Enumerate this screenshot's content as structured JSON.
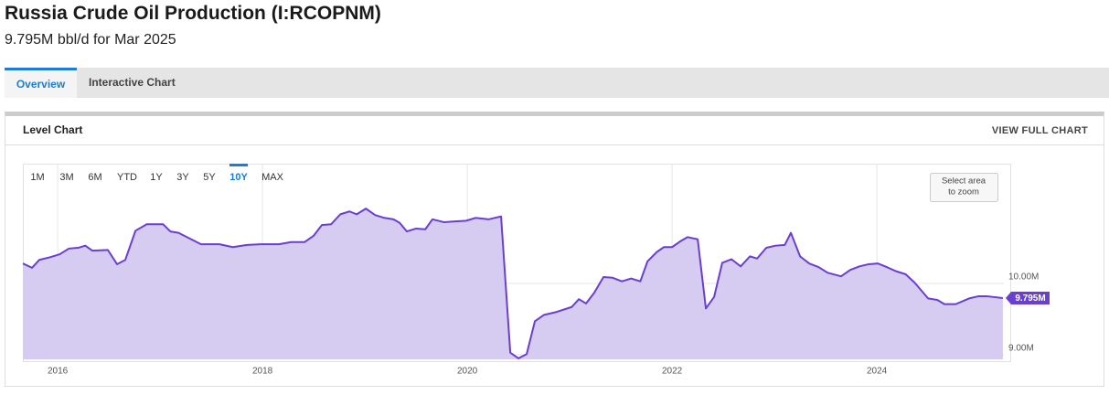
{
  "header": {
    "title": "Russia Crude Oil Production (I:RCOPNM)",
    "subtitle": "9.795M bbl/d for Mar 2025"
  },
  "tabs": [
    "Overview",
    "Interactive Chart"
  ],
  "panel": {
    "title": "Level Chart",
    "action": "VIEW FULL CHART"
  },
  "range_buttons": [
    "1M",
    "3M",
    "6M",
    "YTD",
    "1Y",
    "3Y",
    "5Y",
    "10Y",
    "MAX"
  ],
  "active_range": "10Y",
  "zoom_hint": [
    "Select area",
    "to zoom"
  ],
  "chart_data": {
    "type": "line",
    "color": "#6a3fd0",
    "fill_color": "#d6cbf1",
    "grid": true,
    "xlim": [
      2015.66,
      2025.24
    ],
    "xticks": [
      2016,
      2018,
      2020,
      2022,
      2024
    ],
    "ylim": [
      8.936,
      11.68
    ],
    "yticks": [
      {
        "value": 9,
        "label": "9.00M"
      },
      {
        "value": 10,
        "label": "10.00M"
      }
    ],
    "x": [
      2015.66,
      2015.75,
      2015.82,
      2015.93,
      2016.02,
      2016.11,
      2016.2,
      2016.27,
      2016.34,
      2016.49,
      2016.58,
      2016.66,
      2016.76,
      2016.87,
      2017.03,
      2017.1,
      2017.18,
      2017.4,
      2017.58,
      2017.71,
      2017.85,
      2017.98,
      2018.16,
      2018.28,
      2018.41,
      2018.5,
      2018.58,
      2018.67,
      2018.76,
      2018.85,
      2018.92,
      2019.01,
      2019.1,
      2019.19,
      2019.28,
      2019.34,
      2019.41,
      2019.5,
      2019.59,
      2019.66,
      2019.77,
      2019.88,
      2019.99,
      2020.08,
      2020.21,
      2020.33,
      2020.42,
      2020.5,
      2020.58,
      2020.66,
      2020.75,
      2020.87,
      2021.02,
      2021.09,
      2021.16,
      2021.24,
      2021.33,
      2021.42,
      2021.51,
      2021.6,
      2021.69,
      2021.76,
      2021.85,
      2021.92,
      2022.0,
      2022.09,
      2022.15,
      2022.25,
      2022.33,
      2022.41,
      2022.49,
      2022.58,
      2022.67,
      2022.76,
      2022.83,
      2022.92,
      2023.01,
      2023.1,
      2023.16,
      2023.25,
      2023.34,
      2023.43,
      2023.52,
      2023.65,
      2023.74,
      2023.83,
      2023.92,
      2024.01,
      2024.08,
      2024.19,
      2024.28,
      2024.37,
      2024.5,
      2024.59,
      2024.66,
      2024.77,
      2024.9,
      2024.99,
      2025.08,
      2025.23
    ],
    "values": [
      10.28,
      10.22,
      10.33,
      10.37,
      10.41,
      10.49,
      10.5,
      10.53,
      10.46,
      10.47,
      10.27,
      10.33,
      10.74,
      10.83,
      10.83,
      10.73,
      10.71,
      10.55,
      10.55,
      10.51,
      10.54,
      10.55,
      10.55,
      10.58,
      10.58,
      10.67,
      10.82,
      10.83,
      10.97,
      11.01,
      10.97,
      11.05,
      10.96,
      10.92,
      10.9,
      10.85,
      10.73,
      10.77,
      10.76,
      10.9,
      10.86,
      10.87,
      10.88,
      10.92,
      10.9,
      10.94,
      9.03,
      8.95,
      9.01,
      9.47,
      9.56,
      9.6,
      9.67,
      9.78,
      9.72,
      9.87,
      10.09,
      10.08,
      10.03,
      10.07,
      10.03,
      10.31,
      10.44,
      10.51,
      10.51,
      10.6,
      10.65,
      10.62,
      9.65,
      9.81,
      10.29,
      10.34,
      10.24,
      10.38,
      10.35,
      10.5,
      10.53,
      10.54,
      10.71,
      10.38,
      10.28,
      10.23,
      10.15,
      10.1,
      10.19,
      10.24,
      10.27,
      10.28,
      10.24,
      10.17,
      10.13,
      10.01,
      9.79,
      9.77,
      9.71,
      9.71,
      9.79,
      9.82,
      9.82,
      9.795
    ],
    "last_value_label": {
      "value": 9.795,
      "label": "9.795M"
    }
  }
}
